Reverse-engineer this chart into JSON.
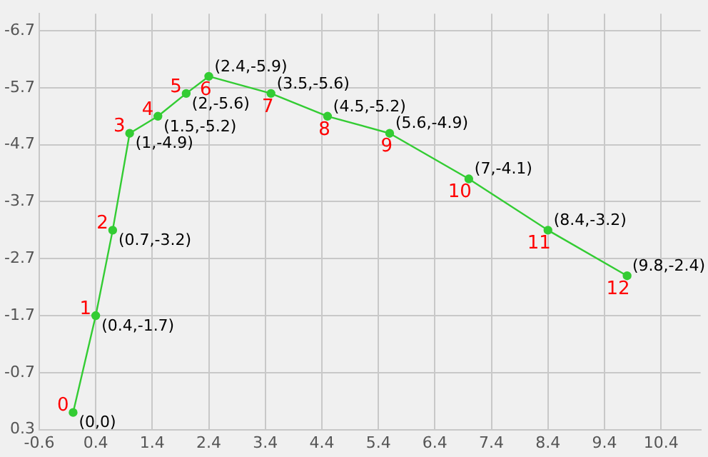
{
  "chart_data": {
    "type": "line",
    "x": [
      0,
      0.4,
      0.7,
      1,
      1.5,
      2,
      2.4,
      3.5,
      4.5,
      5.6,
      7,
      8.4,
      9.8
    ],
    "series": [
      {
        "color": "#33cc33",
        "values": [
          0,
          -1.7,
          -3.2,
          -4.9,
          -5.2,
          -5.6,
          -5.9,
          -5.6,
          -5.2,
          -4.9,
          -4.1,
          -3.2,
          -2.4
        ],
        "value_labels": [
          "(0,0)",
          "(0.4,-1.7)",
          "(0.7,-3.2)",
          "(1,-4.9)",
          "(1.5,-5.2)",
          "(2,-5.6)",
          "(2.4,-5.9)",
          "(3.5,-5.6)",
          "(4.5,-5.2)",
          "(5.6,-4.9)",
          "(7,-4.1)",
          "(8.4,-3.2)",
          "(9.8,-2.4)"
        ]
      }
    ],
    "annotations": [
      {
        "text": "0",
        "x": 0,
        "y": 0
      },
      {
        "text": "1",
        "x": 0.4,
        "y": -1.7
      },
      {
        "text": "2",
        "x": 0.7,
        "y": -3.2
      },
      {
        "text": "3",
        "x": 1,
        "y": -4.9
      },
      {
        "text": "4",
        "x": 1.5,
        "y": -5.2
      },
      {
        "text": "5",
        "x": 2,
        "y": -5.6
      },
      {
        "text": "6",
        "x": 2.4,
        "y": -5.9
      },
      {
        "text": "7",
        "x": 3.5,
        "y": -5.6
      },
      {
        "text": "8",
        "x": 4.5,
        "y": -5.2
      },
      {
        "text": "9",
        "x": 5.6,
        "y": -4.9
      },
      {
        "text": "10",
        "x": 7,
        "y": -4.1
      },
      {
        "text": "11",
        "x": 8.4,
        "y": -3.2
      },
      {
        "text": "12",
        "x": 9.8,
        "y": -2.4
      }
    ],
    "xlim": [
      -0.6,
      11.1
    ],
    "xticks": [
      -0.6,
      0.4,
      1.4,
      2.4,
      3.4,
      4.4,
      5.4,
      6.4,
      7.4,
      8.4,
      9.4,
      10.4
    ],
    "ylim": [
      0.3,
      -7.0
    ],
    "yticks": [
      -6.7,
      -5.7,
      -4.7,
      -3.7,
      -2.7,
      -1.7,
      -0.7,
      0.3
    ],
    "grid": true,
    "legend": false,
    "marker": "circle",
    "line_style": "solid"
  }
}
